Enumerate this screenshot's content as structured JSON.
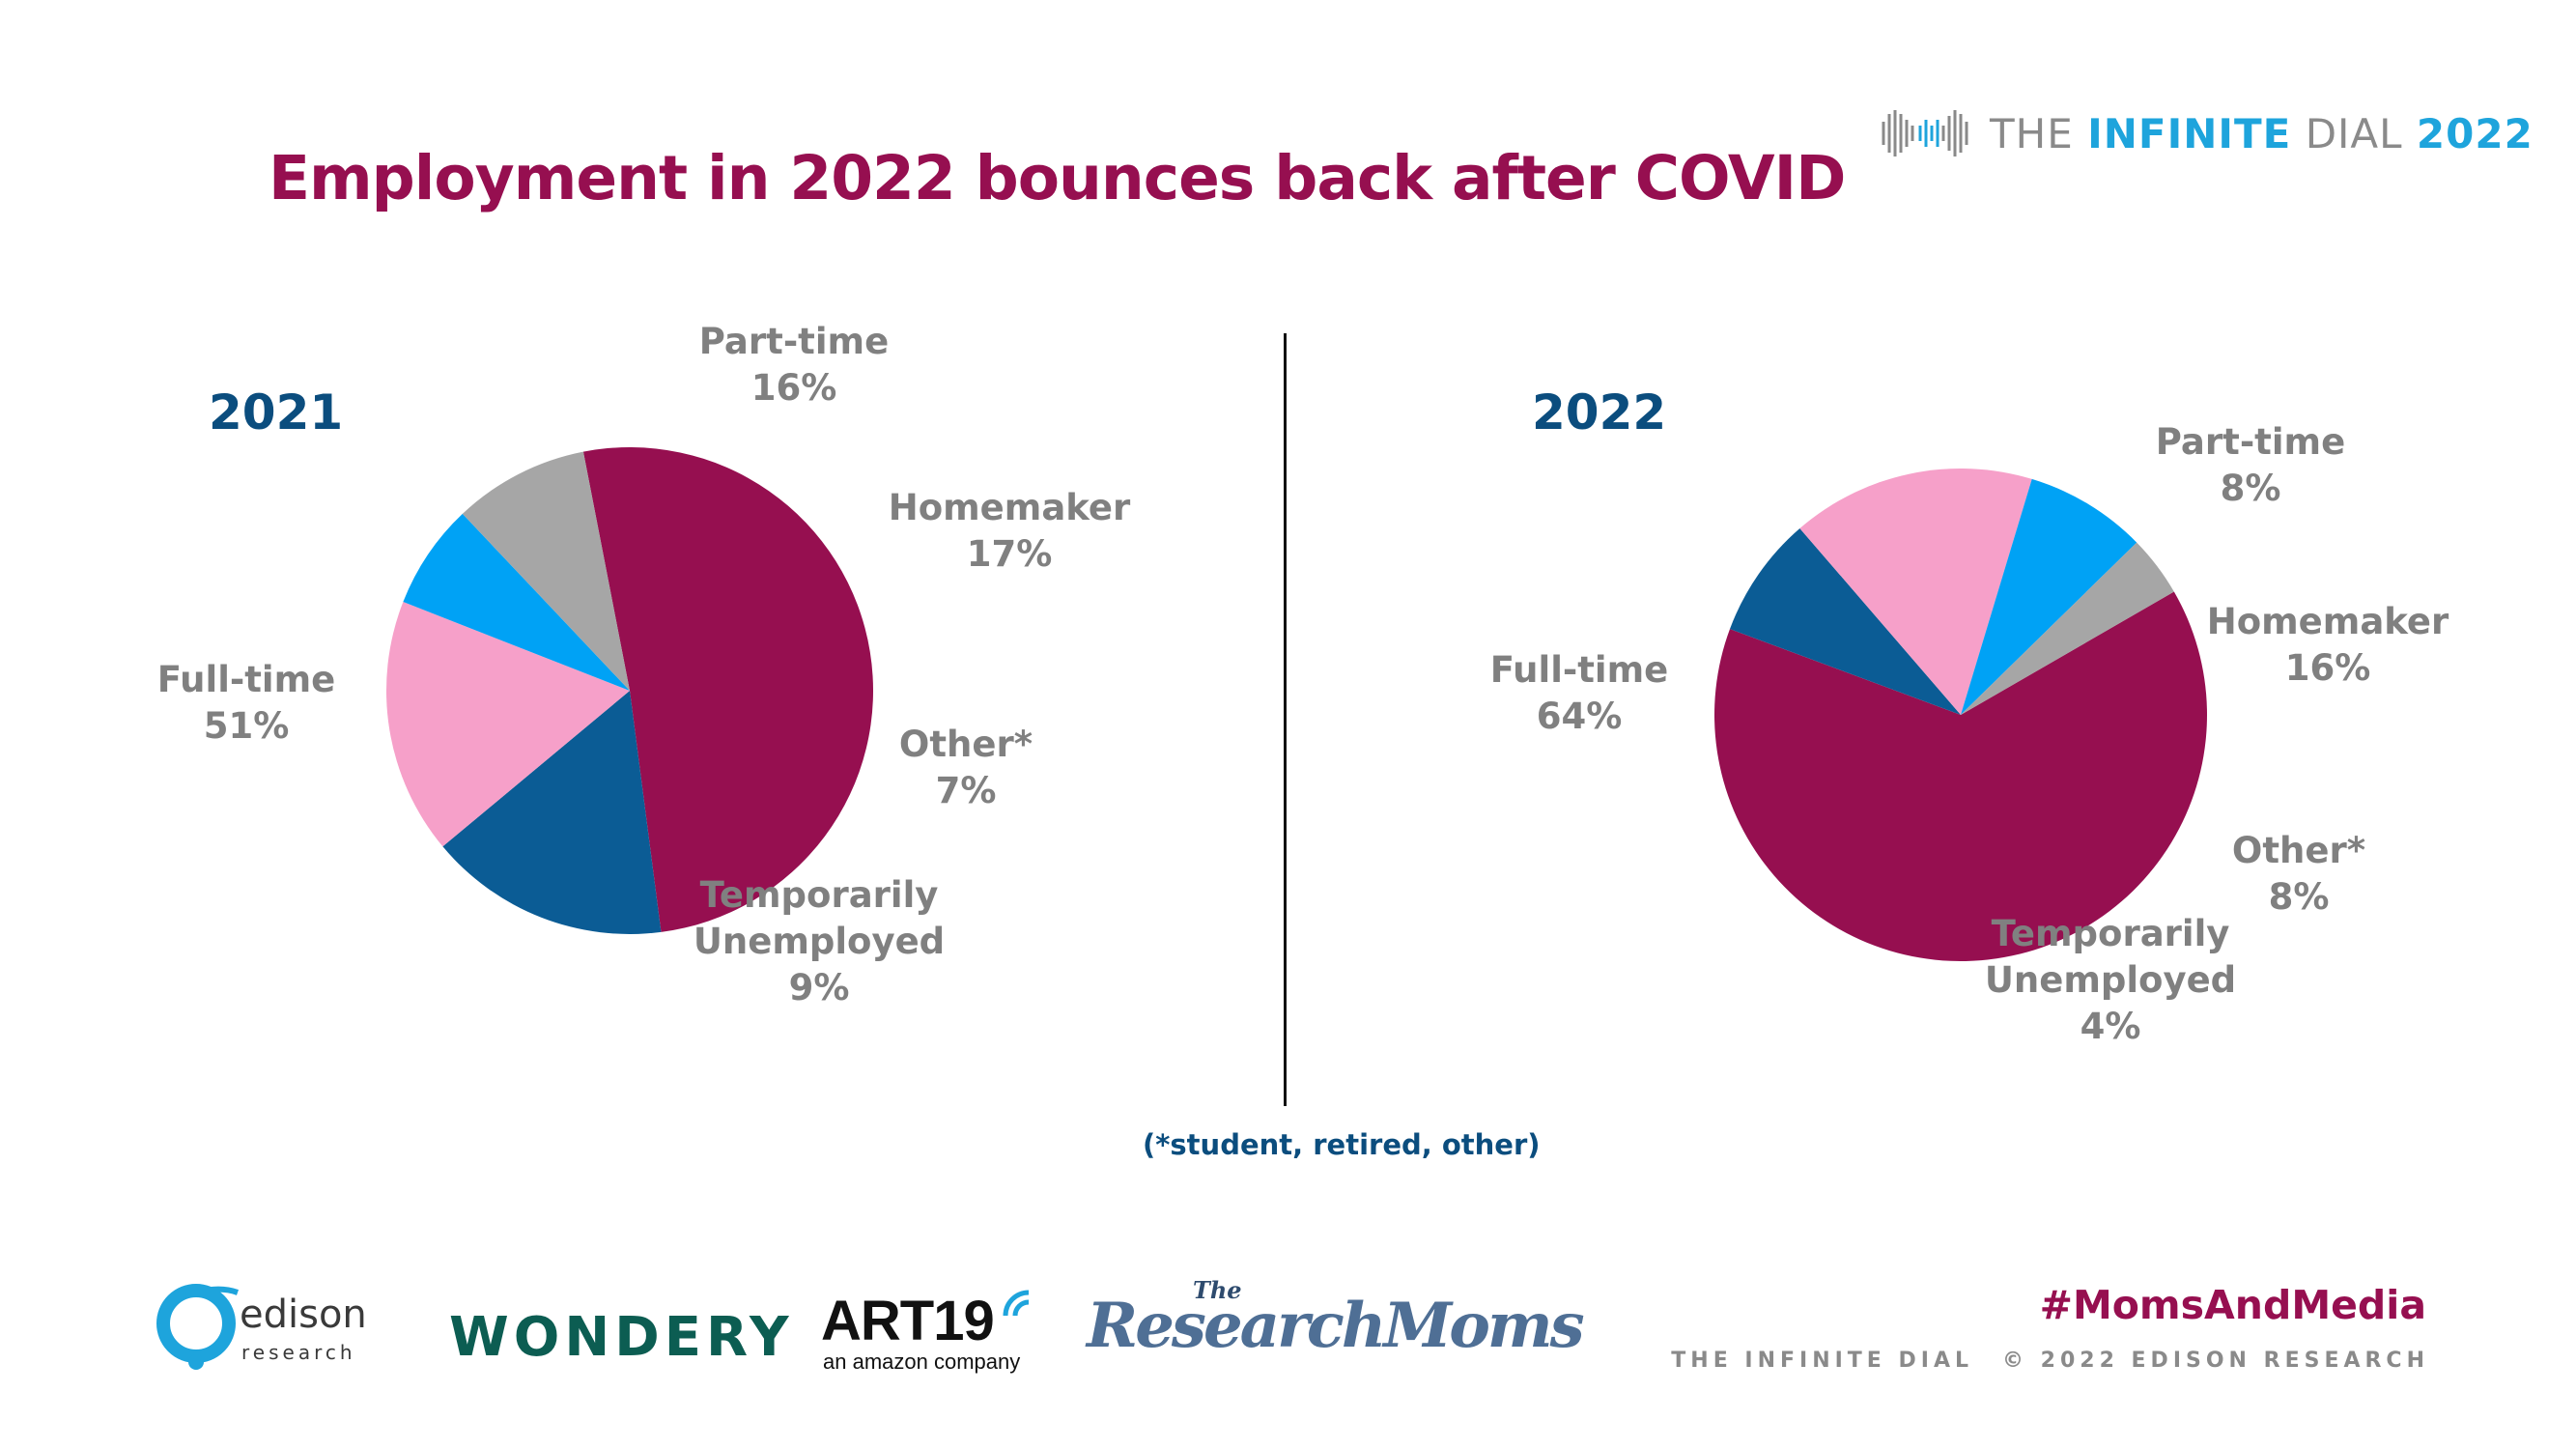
{
  "title": "Employment in 2022 bounces back after COVID",
  "brand": {
    "the": "THE ",
    "infinite": "INFINITE",
    "dial": " DIAL ",
    "year": "2022"
  },
  "chart_data": [
    {
      "type": "pie",
      "title": "2021",
      "categories": [
        "Full-time",
        "Part-time",
        "Homemaker",
        "Other*",
        "Temporarily Unemployed"
      ],
      "values": [
        51,
        16,
        17,
        7,
        9
      ],
      "labels": [
        {
          "name": "Full-time",
          "pct": "51%"
        },
        {
          "name": "Part-time",
          "pct": "16%"
        },
        {
          "name": "Homemaker",
          "pct": "17%"
        },
        {
          "name": "Other*",
          "pct": "7%"
        },
        {
          "name": "Temporarily\nUnemployed",
          "pct": "9%"
        }
      ]
    },
    {
      "type": "pie",
      "title": "2022",
      "categories": [
        "Full-time",
        "Part-time",
        "Homemaker",
        "Other*",
        "Temporarily Unemployed"
      ],
      "values": [
        64,
        8,
        16,
        8,
        4
      ],
      "labels": [
        {
          "name": "Full-time",
          "pct": "64%"
        },
        {
          "name": "Part-time",
          "pct": "8%"
        },
        {
          "name": "Homemaker",
          "pct": "16%"
        },
        {
          "name": "Other*",
          "pct": "8%"
        },
        {
          "name": "Temporarily\nUnemployed",
          "pct": "4%"
        }
      ]
    }
  ],
  "colors": {
    "Full-time": "#960f50",
    "Part-time": "#0b5c95",
    "Homemaker": "#f6a0c9",
    "Other*": "#00a2f5",
    "Temporarily Unemployed": "#a6a6a6"
  },
  "footnote": "(*student, retired, other)",
  "hashtag": "#MomsAndMedia",
  "footer": {
    "left": "THE INFINITE DIAL",
    "right": "© 2022 EDISON RESEARCH"
  },
  "logos": {
    "edison": "edison",
    "edison_sub": "research",
    "wondery": "WONDERY",
    "art19": "ART19",
    "art19_sub": "an amazon company",
    "research_moms": "ResearchMoms",
    "research_moms_the": "The"
  }
}
